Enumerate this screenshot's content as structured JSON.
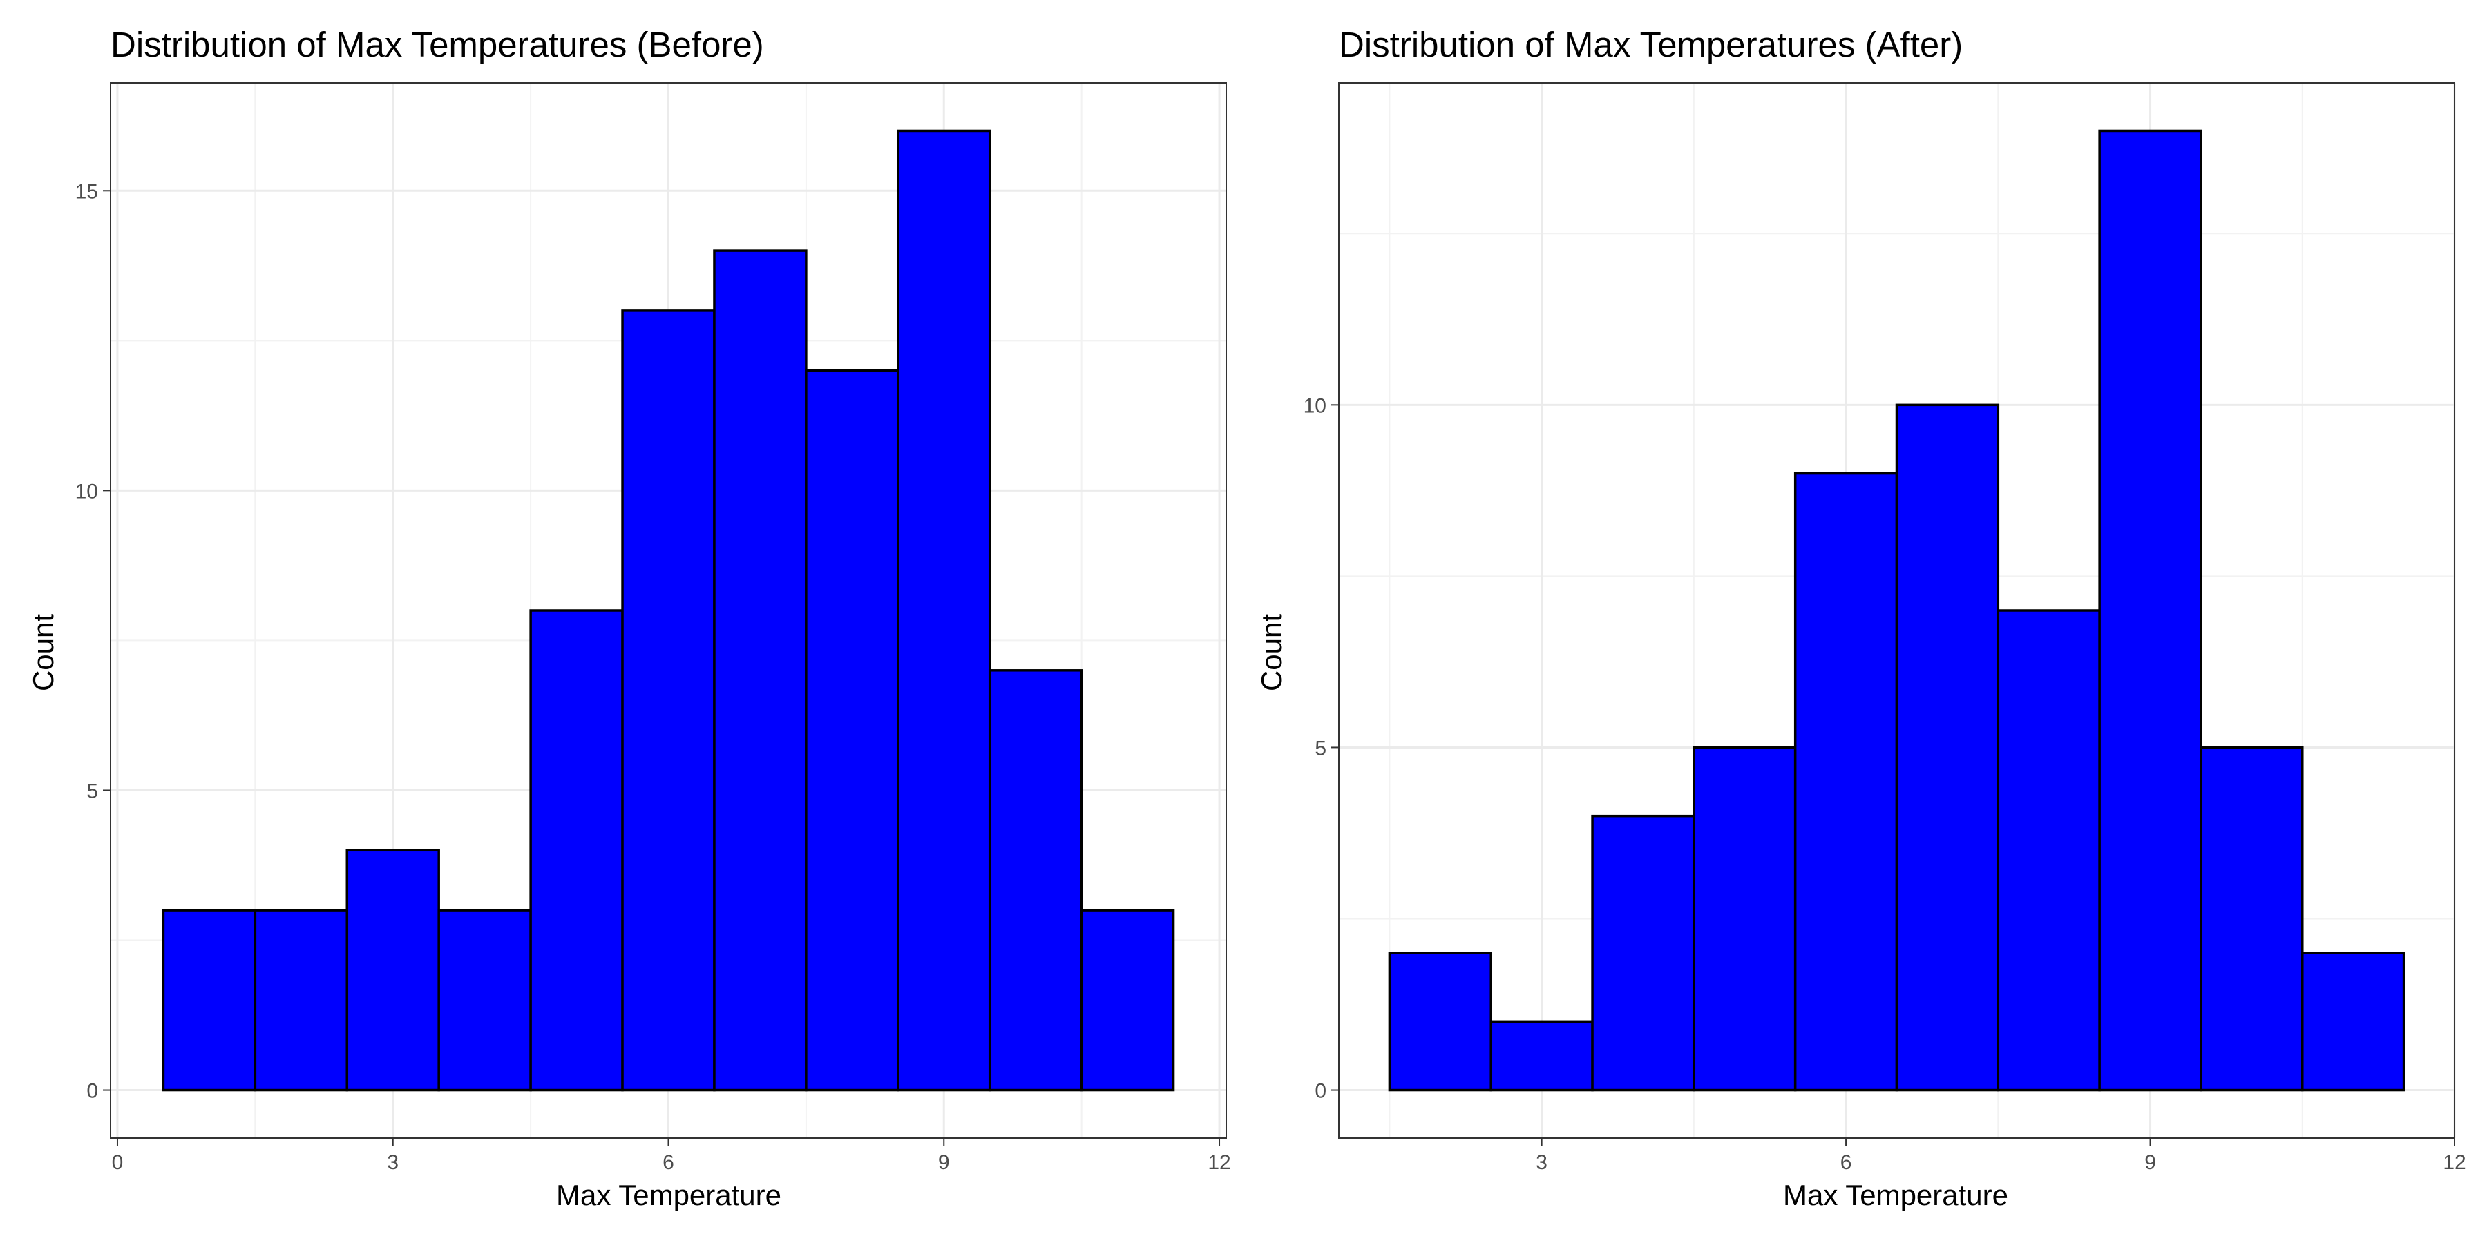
{
  "chart_data": [
    {
      "type": "bar",
      "title": "Distribution of Max Temperatures (Before)",
      "xlabel": "Max Temperature",
      "ylabel": "Count",
      "bin_width": 1,
      "bin_centers": [
        1,
        2,
        3,
        4,
        5,
        6,
        7,
        8,
        9,
        10,
        11
      ],
      "values": [
        3,
        3,
        4,
        3,
        8,
        13,
        14,
        12,
        16,
        7,
        3
      ],
      "xlim": [
        -0.075,
        12.075
      ],
      "ylim": [
        -0.8,
        16.8
      ],
      "x_ticks": [
        0,
        3,
        6,
        9,
        12
      ],
      "x_tick_labels": [
        "0",
        "3",
        "6",
        "9",
        "12"
      ],
      "y_ticks": [
        0,
        5,
        10,
        15
      ],
      "y_tick_labels": [
        "0",
        "5",
        "10",
        "15"
      ],
      "x_minor_ticks": [
        1.5,
        4.5,
        7.5,
        10.5
      ],
      "y_minor_ticks": [
        2.5,
        7.5,
        12.5
      ],
      "bar_fill": "#0000ff",
      "bar_outline": "#000000",
      "grid": true,
      "legend": "none"
    },
    {
      "type": "bar",
      "title": "Distribution of Max Temperatures (After)",
      "xlabel": "Max Temperature",
      "ylabel": "Count",
      "bin_width": 1,
      "bin_centers": [
        2,
        3,
        4,
        5,
        6,
        7,
        8,
        9,
        10,
        11
      ],
      "values": [
        2,
        1,
        4,
        5,
        9,
        10,
        7,
        14,
        5,
        2
      ],
      "xlim": [
        1.0,
        12.0
      ],
      "ylim": [
        -0.7,
        14.7
      ],
      "x_ticks": [
        3,
        6,
        9,
        12
      ],
      "x_tick_labels": [
        "3",
        "6",
        "9",
        "12"
      ],
      "y_ticks": [
        0,
        5,
        10
      ],
      "y_tick_labels": [
        "0",
        "5",
        "10"
      ],
      "x_minor_ticks": [
        1.5,
        4.5,
        7.5,
        10.5
      ],
      "y_minor_ticks": [
        2.5,
        7.5,
        12.5
      ],
      "bar_fill": "#0000ff",
      "bar_outline": "#000000",
      "grid": true,
      "legend": "none"
    }
  ]
}
